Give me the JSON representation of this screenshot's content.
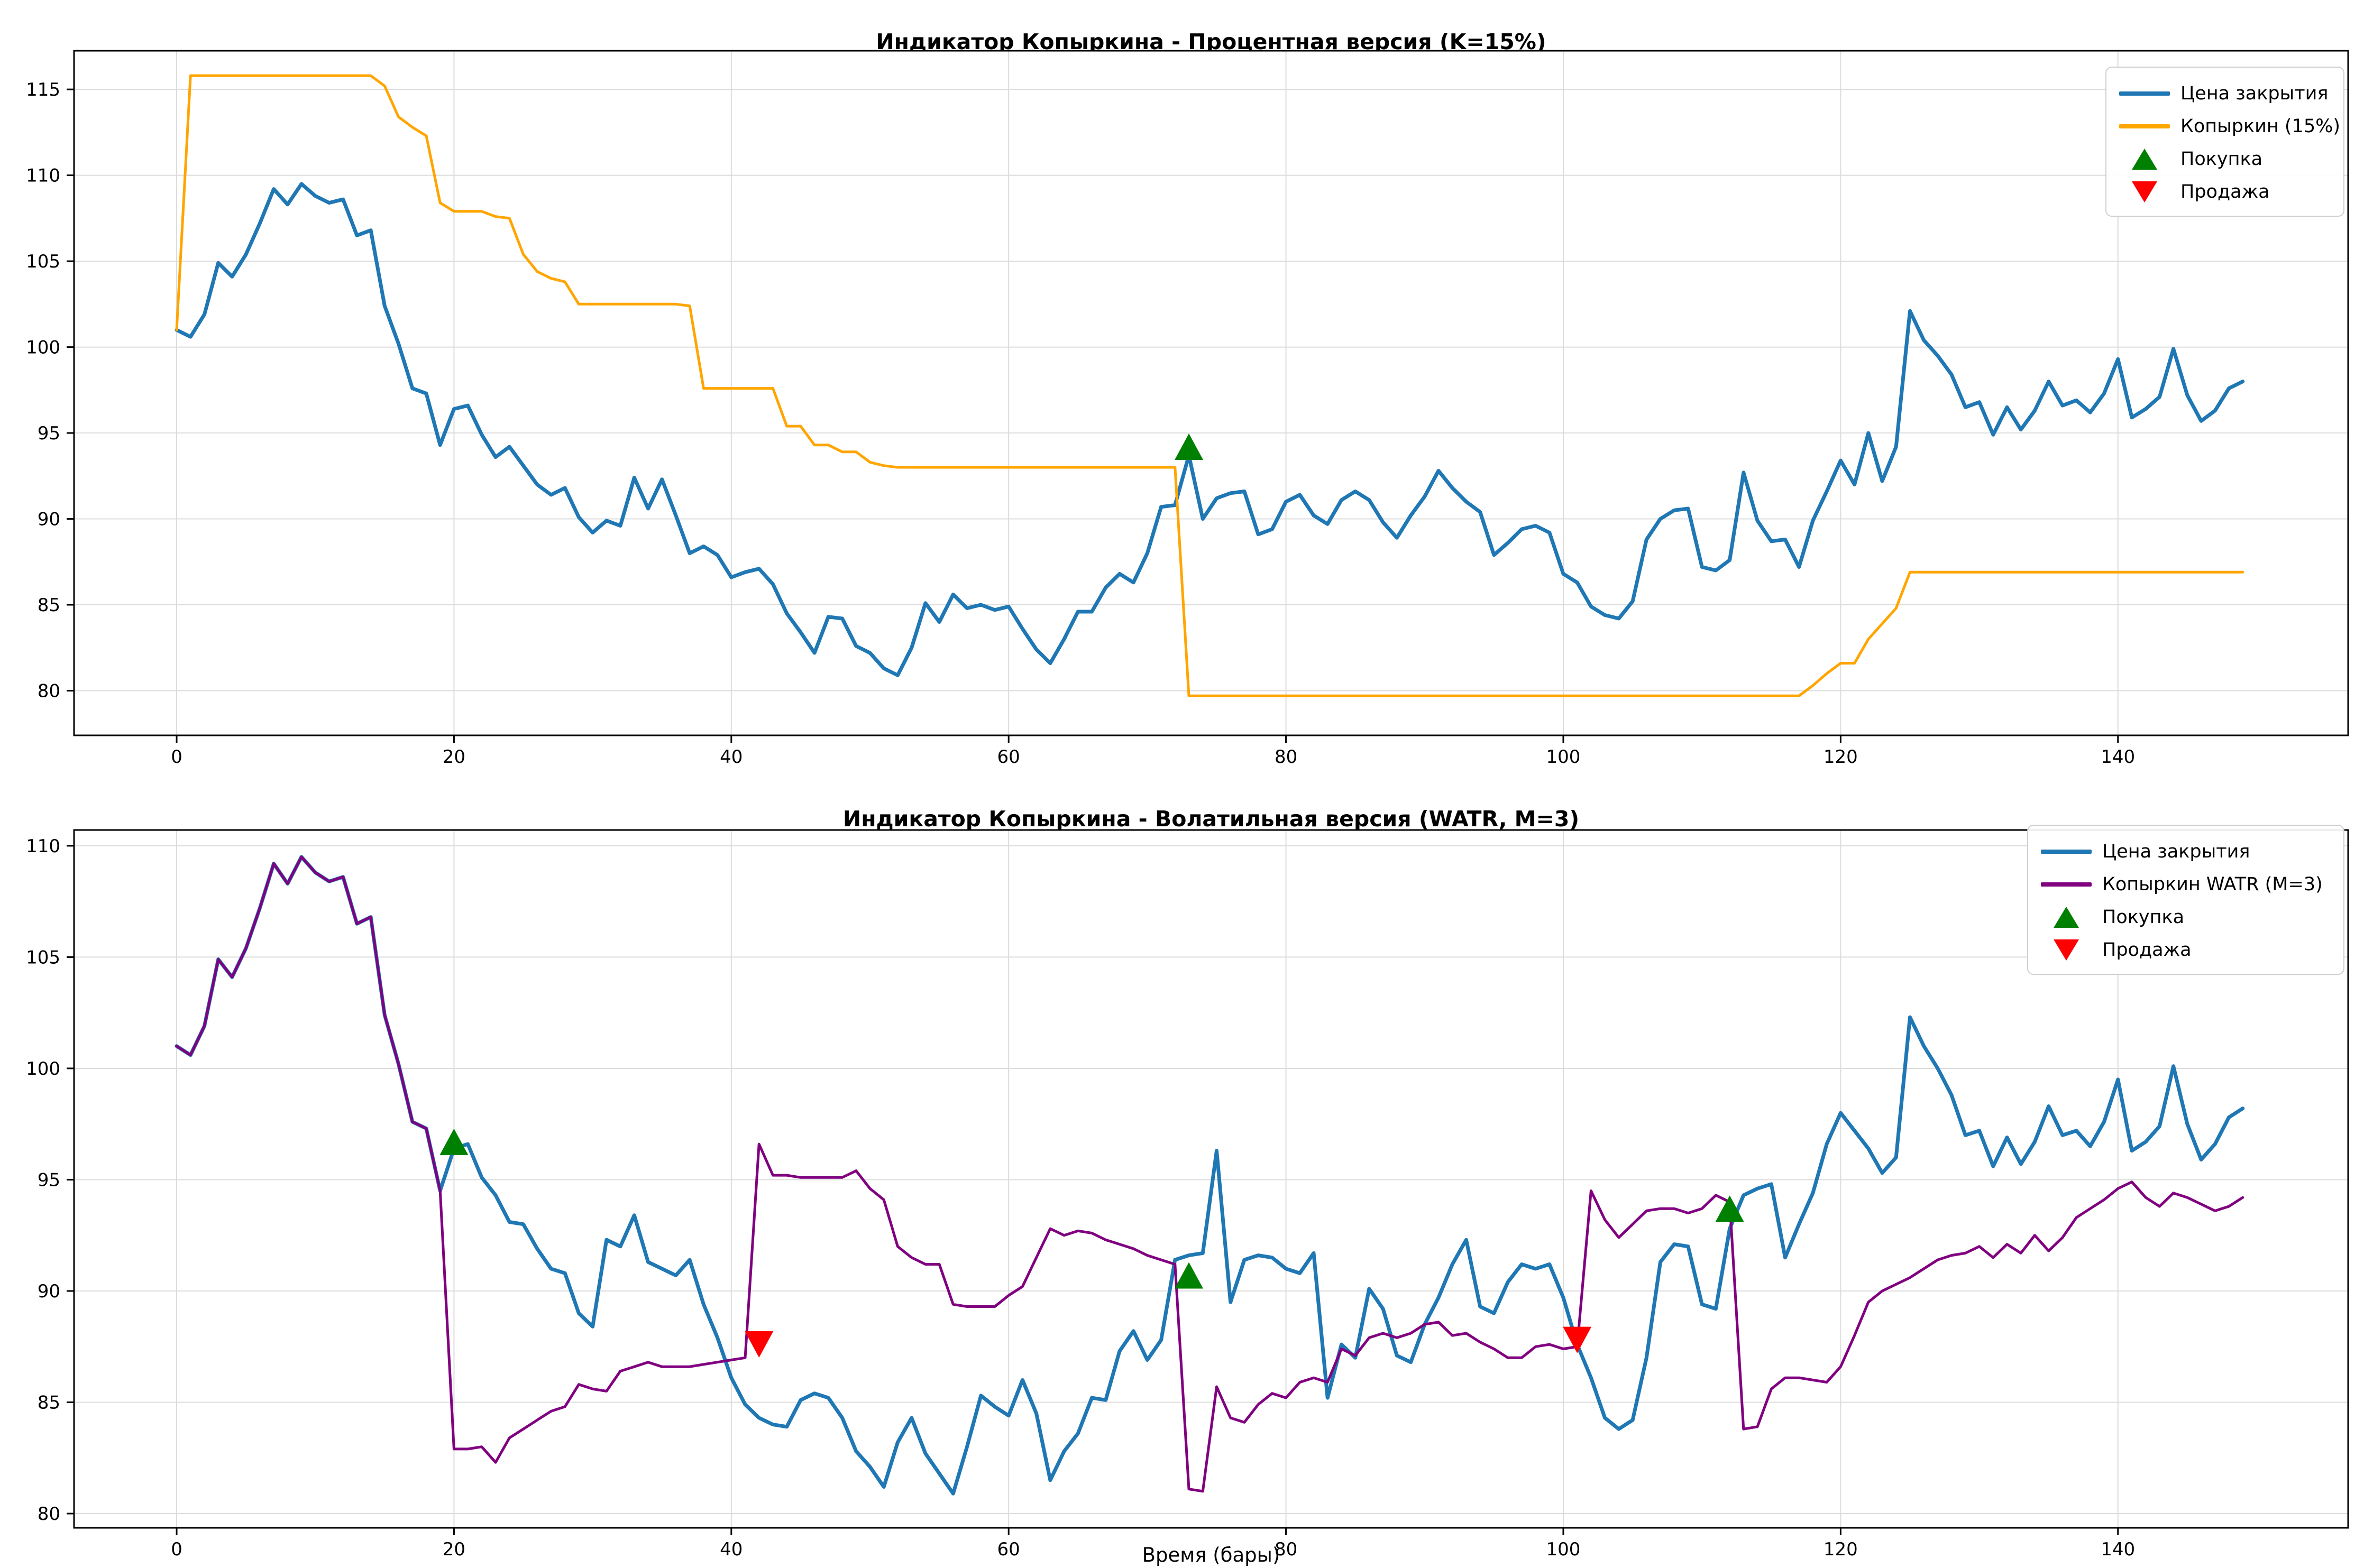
{
  "figure": {
    "background": "#ffffff",
    "grid_color": "#dcdcdc",
    "spine_color": "#000000",
    "tick_font_size": 34,
    "buy_color": "#008000",
    "sell_color": "#ff0000"
  },
  "xlabel": "Время (бары)",
  "chart_data": [
    {
      "type": "line",
      "title": "Индикатор Копыркина - Процентная версия (K=15%)",
      "xlabel": "",
      "ylabel": "",
      "grid": true,
      "legend_position": "upper right",
      "xlim": [
        -7.4,
        156.6
      ],
      "ylim": [
        77.4,
        117.25
      ],
      "xticks": [
        0,
        20,
        40,
        60,
        80,
        100,
        120,
        140
      ],
      "yticks": [
        80,
        85,
        90,
        95,
        100,
        105,
        110,
        115
      ],
      "series": [
        {
          "name": "Цена закрытия",
          "color": "#1f77b4",
          "width": 7,
          "values": [
            101.0,
            100.6,
            101.9,
            104.9,
            104.1,
            105.4,
            107.2,
            109.2,
            108.3,
            109.5,
            108.8,
            108.4,
            108.6,
            106.5,
            106.8,
            102.4,
            100.2,
            97.6,
            97.3,
            94.3,
            96.4,
            96.6,
            94.9,
            93.6,
            94.2,
            93.1,
            92.0,
            91.4,
            91.8,
            90.1,
            89.2,
            89.9,
            89.6,
            92.4,
            90.6,
            92.3,
            90.2,
            88.0,
            88.4,
            87.9,
            86.6,
            86.9,
            87.1,
            86.2,
            84.5,
            83.4,
            82.2,
            84.3,
            84.2,
            82.6,
            82.2,
            81.3,
            80.9,
            82.5,
            85.1,
            84.0,
            85.6,
            84.8,
            85.0,
            84.7,
            84.9,
            83.6,
            82.4,
            81.6,
            83.0,
            84.6,
            84.6,
            86.0,
            86.8,
            86.3,
            88.0,
            90.7,
            90.8,
            93.7,
            90.0,
            91.2,
            91.5,
            91.6,
            89.1,
            89.4,
            91.0,
            91.4,
            90.2,
            89.7,
            91.1,
            91.6,
            91.1,
            89.8,
            88.9,
            90.2,
            91.3,
            92.8,
            91.8,
            91.0,
            90.4,
            87.9,
            88.6,
            89.4,
            89.6,
            89.2,
            86.8,
            86.3,
            84.9,
            84.4,
            84.2,
            85.2,
            88.8,
            90.0,
            90.5,
            90.6,
            87.2,
            87.0,
            87.6,
            92.7,
            89.9,
            88.7,
            88.8,
            87.2,
            89.9,
            91.6,
            93.4,
            92.0,
            95.0,
            92.2,
            94.2,
            102.1,
            100.4,
            99.5,
            98.4,
            96.5,
            96.8,
            94.9,
            96.5,
            95.2,
            96.3,
            98.0,
            96.6,
            96.9,
            96.2,
            97.3,
            99.3,
            95.9,
            96.4,
            97.1,
            99.9,
            97.2,
            95.7,
            96.3,
            97.6,
            98.0
          ]
        },
        {
          "name": "Копыркин (15%)",
          "color": "#ffa500",
          "width": 5,
          "values": [
            101.0,
            115.8,
            115.8,
            115.8,
            115.8,
            115.8,
            115.8,
            115.8,
            115.8,
            115.8,
            115.8,
            115.8,
            115.8,
            115.8,
            115.8,
            115.2,
            113.4,
            112.8,
            112.3,
            108.4,
            107.9,
            107.9,
            107.9,
            107.6,
            107.5,
            105.4,
            104.4,
            104.0,
            103.8,
            102.5,
            102.5,
            102.5,
            102.5,
            102.5,
            102.5,
            102.5,
            102.5,
            102.4,
            97.6,
            97.6,
            97.6,
            97.6,
            97.6,
            97.6,
            95.4,
            95.4,
            94.3,
            94.3,
            93.9,
            93.9,
            93.3,
            93.1,
            93.0,
            93.0,
            93.0,
            93.0,
            93.0,
            93.0,
            93.0,
            93.0,
            93.0,
            93.0,
            93.0,
            93.0,
            93.0,
            93.0,
            93.0,
            93.0,
            93.0,
            93.0,
            93.0,
            93.0,
            93.0,
            79.7,
            79.7,
            79.7,
            79.7,
            79.7,
            79.7,
            79.7,
            79.7,
            79.7,
            79.7,
            79.7,
            79.7,
            79.7,
            79.7,
            79.7,
            79.7,
            79.7,
            79.7,
            79.7,
            79.7,
            79.7,
            79.7,
            79.7,
            79.7,
            79.7,
            79.7,
            79.7,
            79.7,
            79.7,
            79.7,
            79.7,
            79.7,
            79.7,
            79.7,
            79.7,
            79.7,
            79.7,
            79.7,
            79.7,
            79.7,
            79.7,
            79.7,
            79.7,
            79.7,
            79.7,
            80.3,
            81.0,
            81.6,
            81.6,
            83.0,
            83.9,
            84.8,
            86.9,
            86.9,
            86.9,
            86.9,
            86.9,
            86.9,
            86.9,
            86.9,
            86.9,
            86.9,
            86.9,
            86.9,
            86.9,
            86.9,
            86.9,
            86.9,
            86.9,
            86.9,
            86.9,
            86.9,
            86.9,
            86.9,
            86.9,
            86.9,
            86.9
          ]
        }
      ],
      "markers": [
        {
          "name": "Покупка",
          "shape": "triangle-up",
          "color": "#008000",
          "points": [
            {
              "x": 73,
              "y": 94.2
            }
          ]
        },
        {
          "name": "Продажа",
          "shape": "triangle-down",
          "color": "#ff0000",
          "points": []
        }
      ]
    },
    {
      "type": "line",
      "title": "Индикатор Копыркина - Волатильная версия (WATR, M=3)",
      "xlabel": "Время (бары)",
      "ylabel": "",
      "grid": true,
      "legend_position": "upper right",
      "xlim": [
        -7.4,
        156.6
      ],
      "ylim": [
        79.36,
        110.71
      ],
      "xticks": [
        0,
        20,
        40,
        60,
        80,
        100,
        120,
        140
      ],
      "yticks": [
        80,
        85,
        90,
        95,
        100,
        105,
        110
      ],
      "series": [
        {
          "name": "Цена закрытия",
          "color": "#1f77b4",
          "width": 7,
          "values": [
            101.0,
            100.6,
            101.9,
            104.9,
            104.1,
            105.4,
            107.2,
            109.2,
            108.3,
            109.5,
            108.8,
            108.4,
            108.6,
            106.5,
            106.8,
            102.4,
            100.2,
            97.6,
            97.3,
            94.5,
            96.4,
            96.6,
            95.1,
            94.3,
            93.1,
            93.0,
            91.9,
            91.0,
            90.8,
            89.0,
            88.4,
            92.3,
            92.0,
            93.4,
            91.3,
            91.0,
            90.7,
            91.4,
            89.4,
            87.9,
            86.1,
            84.9,
            84.3,
            84.0,
            83.9,
            85.1,
            85.4,
            85.2,
            84.3,
            82.8,
            82.1,
            81.2,
            83.2,
            84.3,
            82.7,
            81.8,
            80.9,
            83.0,
            85.3,
            84.8,
            84.4,
            86.0,
            84.5,
            81.5,
            82.8,
            83.6,
            85.2,
            85.1,
            87.3,
            88.2,
            86.9,
            87.8,
            91.4,
            91.6,
            91.7,
            96.3,
            89.5,
            91.4,
            91.6,
            91.5,
            91.0,
            90.8,
            91.7,
            85.2,
            87.6,
            87.0,
            90.1,
            89.2,
            87.1,
            86.8,
            88.5,
            89.7,
            91.2,
            92.3,
            89.3,
            89.0,
            90.4,
            91.2,
            91.0,
            91.2,
            89.7,
            87.6,
            86.1,
            84.3,
            83.8,
            84.2,
            87.0,
            91.3,
            92.1,
            92.0,
            89.4,
            89.2,
            92.8,
            94.3,
            94.6,
            94.8,
            91.5,
            93.0,
            94.4,
            96.6,
            98.0,
            97.2,
            96.4,
            95.3,
            96.0,
            102.3,
            101.0,
            100.0,
            98.8,
            97.0,
            97.2,
            95.6,
            96.9,
            95.7,
            96.7,
            98.3,
            97.0,
            97.2,
            96.5,
            97.6,
            99.5,
            96.3,
            96.7,
            97.4,
            100.1,
            97.5,
            95.9,
            96.6,
            97.8,
            98.2
          ]
        },
        {
          "name": "Копыркин WATR (M=3)",
          "color": "#800080",
          "width": 5,
          "values": [
            101.0,
            100.6,
            101.9,
            104.9,
            104.1,
            105.4,
            107.2,
            109.2,
            108.3,
            109.5,
            108.8,
            108.4,
            108.6,
            106.5,
            106.8,
            102.4,
            100.2,
            97.6,
            97.3,
            94.5,
            82.9,
            82.9,
            83.0,
            82.3,
            83.4,
            83.8,
            84.2,
            84.6,
            84.8,
            85.8,
            85.6,
            85.5,
            86.4,
            86.6,
            86.8,
            86.6,
            86.6,
            86.6,
            86.7,
            86.8,
            86.9,
            87.0,
            96.6,
            95.2,
            95.2,
            95.1,
            95.1,
            95.1,
            95.1,
            95.4,
            94.6,
            94.1,
            92.0,
            91.5,
            91.2,
            91.2,
            89.4,
            89.3,
            89.3,
            89.3,
            89.8,
            90.2,
            91.5,
            92.8,
            92.5,
            92.7,
            92.6,
            92.3,
            92.1,
            91.9,
            91.6,
            91.4,
            91.2,
            81.1,
            81.0,
            85.7,
            84.3,
            84.1,
            84.9,
            85.4,
            85.2,
            85.9,
            86.1,
            85.9,
            87.4,
            87.1,
            87.9,
            88.1,
            87.9,
            88.1,
            88.5,
            88.6,
            88.0,
            88.1,
            87.7,
            87.4,
            87.0,
            87.0,
            87.5,
            87.6,
            87.4,
            87.5,
            94.5,
            93.2,
            92.4,
            93.0,
            93.6,
            93.7,
            93.7,
            93.5,
            93.7,
            94.3,
            94.0,
            83.8,
            83.9,
            85.6,
            86.1,
            86.1,
            86.0,
            85.9,
            86.6,
            88.0,
            89.5,
            90.0,
            90.3,
            90.6,
            91.0,
            91.4,
            91.6,
            91.7,
            92.0,
            91.5,
            92.1,
            91.7,
            92.5,
            91.8,
            92.4,
            93.3,
            93.7,
            94.1,
            94.6,
            94.9,
            94.2,
            93.8,
            94.4,
            94.2,
            93.9,
            93.6,
            93.8,
            94.2
          ]
        }
      ],
      "markers": [
        {
          "name": "Покупка",
          "shape": "triangle-up",
          "color": "#008000",
          "points": [
            {
              "x": 20,
              "y": 96.7
            },
            {
              "x": 73,
              "y": 90.7
            },
            {
              "x": 112,
              "y": 93.7
            }
          ]
        },
        {
          "name": "Продажа",
          "shape": "triangle-down",
          "color": "#ff0000",
          "points": [
            {
              "x": 42,
              "y": 87.6
            },
            {
              "x": 101,
              "y": 87.8
            }
          ]
        }
      ]
    }
  ]
}
